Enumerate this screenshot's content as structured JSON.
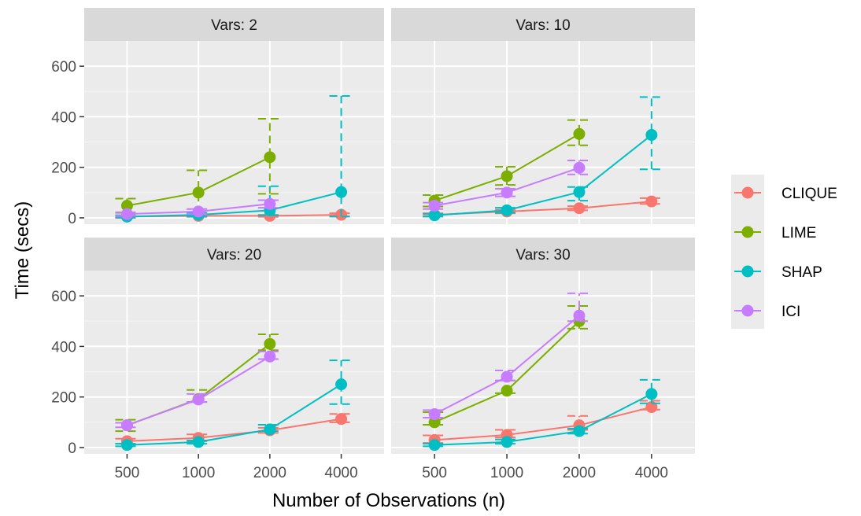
{
  "chart_data": {
    "type": "line",
    "xlabel": "Number of Observations (n)",
    "ylabel": "Time (secs)",
    "x_categories": [
      "500",
      "1000",
      "2000",
      "4000"
    ],
    "y_ticks": [
      0,
      200,
      400,
      600
    ],
    "ylim": [
      -25,
      700
    ],
    "grid": true,
    "legend_position": "right",
    "colors": {
      "CLIQUE": "#F8766D",
      "LIME": "#7CAE00",
      "SHAP": "#00BFC4",
      "ICI": "#C77CFF"
    },
    "legend": [
      "CLIQUE",
      "LIME",
      "SHAP",
      "ICI"
    ],
    "panels": [
      {
        "title": "Vars: 2",
        "series": [
          {
            "name": "CLIQUE",
            "points": [
              [
                0,
                5,
                0,
                10
              ],
              [
                1,
                8,
                4,
                12
              ],
              [
                2,
                8,
                4,
                12
              ],
              [
                3,
                12,
                6,
                18
              ]
            ]
          },
          {
            "name": "LIME",
            "points": [
              [
                0,
                48,
                20,
                76
              ],
              [
                1,
                100,
                15,
                188
              ],
              [
                2,
                240,
                95,
                392
              ]
            ]
          },
          {
            "name": "SHAP",
            "points": [
              [
                0,
                5,
                2,
                10
              ],
              [
                1,
                12,
                5,
                20
              ],
              [
                2,
                30,
                10,
                125
              ],
              [
                3,
                102,
                5,
                482
              ]
            ]
          },
          {
            "name": "ICI",
            "points": [
              [
                0,
                15,
                8,
                22
              ],
              [
                1,
                25,
                15,
                35
              ],
              [
                2,
                55,
                40,
                70
              ]
            ]
          }
        ]
      },
      {
        "title": "Vars: 10",
        "series": [
          {
            "name": "CLIQUE",
            "points": [
              [
                0,
                12,
                8,
                18
              ],
              [
                1,
                25,
                18,
                32
              ],
              [
                2,
                38,
                30,
                46
              ],
              [
                3,
                65,
                55,
                78
              ]
            ]
          },
          {
            "name": "LIME",
            "points": [
              [
                0,
                68,
                45,
                90
              ],
              [
                1,
                165,
                130,
                202
              ],
              [
                2,
                332,
                287,
                387
              ]
            ]
          },
          {
            "name": "SHAP",
            "points": [
              [
                0,
                10,
                5,
                16
              ],
              [
                1,
                30,
                20,
                40
              ],
              [
                2,
                102,
                68,
                122
              ],
              [
                3,
                328,
                192,
                478
              ]
            ]
          },
          {
            "name": "ICI",
            "points": [
              [
                0,
                48,
                35,
                60
              ],
              [
                1,
                100,
                85,
                115
              ],
              [
                2,
                198,
                172,
                227
              ]
            ]
          }
        ]
      },
      {
        "title": "Vars: 20",
        "series": [
          {
            "name": "CLIQUE",
            "points": [
              [
                0,
                25,
                15,
                35
              ],
              [
                1,
                38,
                25,
                52
              ],
              [
                2,
                68,
                58,
                78
              ],
              [
                3,
                113,
                100,
                133
              ]
            ]
          },
          {
            "name": "LIME",
            "points": [
              [
                0,
                88,
                65,
                110
              ],
              [
                1,
                192,
                180,
                228
              ],
              [
                2,
                410,
                385,
                448
              ]
            ]
          },
          {
            "name": "SHAP",
            "points": [
              [
                0,
                10,
                5,
                15
              ],
              [
                1,
                22,
                15,
                28
              ],
              [
                2,
                72,
                65,
                90
              ],
              [
                3,
                250,
                172,
                345
              ]
            ]
          },
          {
            "name": "ICI",
            "points": [
              [
                0,
                88,
                80,
                98
              ],
              [
                1,
                190,
                180,
                212
              ],
              [
                2,
                360,
                350,
                380
              ]
            ]
          }
        ]
      },
      {
        "title": "Vars: 30",
        "series": [
          {
            "name": "CLIQUE",
            "points": [
              [
                0,
                30,
                18,
                48
              ],
              [
                1,
                50,
                40,
                70
              ],
              [
                2,
                88,
                70,
                125
              ],
              [
                3,
                160,
                150,
                185
              ]
            ]
          },
          {
            "name": "LIME",
            "points": [
              [
                0,
                100,
                90,
                140
              ],
              [
                1,
                225,
                215,
                265
              ],
              [
                2,
                500,
                470,
                560
              ]
            ]
          },
          {
            "name": "SHAP",
            "points": [
              [
                0,
                10,
                5,
                15
              ],
              [
                1,
                22,
                15,
                32
              ],
              [
                2,
                65,
                55,
                75
              ],
              [
                3,
                212,
                175,
                268
              ]
            ]
          },
          {
            "name": "ICI",
            "points": [
              [
                0,
                132,
                118,
                148
              ],
              [
                1,
                280,
                265,
                305
              ],
              [
                2,
                522,
                500,
                610
              ]
            ]
          }
        ]
      }
    ]
  }
}
